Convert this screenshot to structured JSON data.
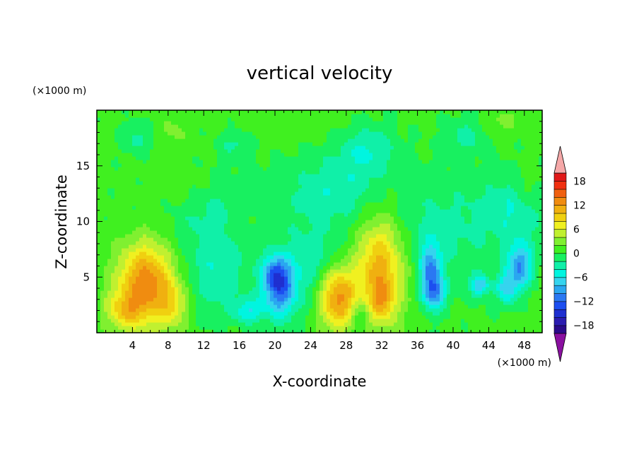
{
  "chart_data": {
    "type": "heatmap",
    "title": "vertical velocity",
    "xlabel": "X-coordinate",
    "ylabel": "Z-coordinate",
    "x_unit": "(×1000 m)",
    "y_unit": "(×1000 m)",
    "xlim": [
      0,
      50
    ],
    "ylim": [
      0,
      20
    ],
    "x_ticks": [
      4,
      8,
      12,
      16,
      20,
      24,
      28,
      32,
      36,
      40,
      44,
      48
    ],
    "y_ticks": [
      5,
      10,
      15
    ],
    "grid": false,
    "colorbar": {
      "levels": [
        -20,
        -18,
        -16,
        -14,
        -12,
        -10,
        -8,
        -6,
        -4,
        -2,
        0,
        2,
        4,
        6,
        8,
        10,
        12,
        14,
        16,
        18,
        20
      ],
      "tick_values": [
        18,
        12,
        6,
        0,
        -6,
        -12,
        -18
      ],
      "tick_labels": [
        "18",
        "12",
        "6",
        "0",
        "−6",
        "−12",
        "−18"
      ],
      "colors": [
        "#2a0a8a",
        "#2b1cb0",
        "#1f2fd0",
        "#1c4ef0",
        "#2a78f2",
        "#2aa7f0",
        "#35d4ee",
        "#00f5e0",
        "#10f0a8",
        "#18f060",
        "#40f020",
        "#80f030",
        "#c0f030",
        "#f0f020",
        "#f0d010",
        "#f0b010",
        "#f08c10",
        "#f06010",
        "#f03010",
        "#e01818"
      ],
      "over_color": "#f5a8a8",
      "under_color": "#8a10a0"
    },
    "features": [
      {
        "x": 5.5,
        "z": 4.5,
        "value": 13,
        "sx": 2.2,
        "sz": 2.6
      },
      {
        "x": 3.0,
        "z": 2.0,
        "value": 6,
        "sx": 1.5,
        "sz": 1.2
      },
      {
        "x": 8.5,
        "z": 2.5,
        "value": 5,
        "sx": 1.2,
        "sz": 1.5
      },
      {
        "x": 27.0,
        "z": 3.2,
        "value": 13,
        "sx": 1.5,
        "sz": 2.0
      },
      {
        "x": 31.8,
        "z": 5.5,
        "value": 11,
        "sx": 1.9,
        "sz": 3.4
      },
      {
        "x": 32.0,
        "z": 3.0,
        "value": 5,
        "sx": 0.8,
        "sz": 1.0
      },
      {
        "x": 29.5,
        "z": 1.5,
        "value": -4,
        "sx": 0.8,
        "sz": 1.2
      },
      {
        "x": 20.5,
        "z": 4.0,
        "value": -12,
        "sx": 1.3,
        "sz": 1.8
      },
      {
        "x": 20.0,
        "z": 5.5,
        "value": -6,
        "sx": 1.0,
        "sz": 1.0
      },
      {
        "x": 37.5,
        "z": 5.5,
        "value": -10,
        "sx": 0.8,
        "sz": 1.8
      },
      {
        "x": 38.0,
        "z": 3.5,
        "value": -7,
        "sx": 0.9,
        "sz": 1.0
      },
      {
        "x": 47.5,
        "z": 6.0,
        "value": -10,
        "sx": 1.0,
        "sz": 1.4
      },
      {
        "x": 46.0,
        "z": 4.0,
        "value": -7,
        "sx": 0.8,
        "sz": 1.0
      },
      {
        "x": 43.0,
        "z": 4.3,
        "value": -8,
        "sx": 0.7,
        "sz": 0.7
      },
      {
        "x": 17.0,
        "z": 2.0,
        "value": -6,
        "sx": 1.1,
        "sz": 0.8
      },
      {
        "x": 13.5,
        "z": 5.5,
        "value": -4,
        "sx": 2.5,
        "sz": 2.6
      },
      {
        "x": 24.5,
        "z": 6.0,
        "value": -4,
        "sx": 2.3,
        "sz": 2.6
      },
      {
        "x": 27.0,
        "z": 13.0,
        "value": -4,
        "sx": 3.5,
        "sz": 2.3
      },
      {
        "x": 39.0,
        "z": 9.5,
        "value": -3,
        "sx": 4.5,
        "sz": 3.5
      },
      {
        "x": 47.0,
        "z": 11.0,
        "value": -4,
        "sx": 2.5,
        "sz": 2.2
      },
      {
        "x": 14.0,
        "z": 11.0,
        "value": -3,
        "sx": 5.0,
        "sz": 2.5
      },
      {
        "x": 4.5,
        "z": 17.5,
        "value": -3,
        "sx": 1.2,
        "sz": 1.0
      },
      {
        "x": 15.5,
        "z": 17.0,
        "value": -3,
        "sx": 1.2,
        "sz": 0.8
      },
      {
        "x": 30.5,
        "z": 16.5,
        "value": -4,
        "sx": 2.2,
        "sz": 1.6
      },
      {
        "x": 41.5,
        "z": 17.8,
        "value": -3,
        "sx": 1.6,
        "sz": 1.2
      },
      {
        "x": 8.5,
        "z": 18.0,
        "value": 2,
        "sx": 1.2,
        "sz": 1.2
      },
      {
        "x": 9.5,
        "z": 13.0,
        "value": 2,
        "sx": 2.5,
        "sz": 1.5
      },
      {
        "x": 16.5,
        "z": 10.0,
        "value": 2,
        "sx": 1.4,
        "sz": 1.8
      },
      {
        "x": 22.0,
        "z": 18.5,
        "value": 1,
        "sx": 3.5,
        "sz": 1.0
      },
      {
        "x": 45.5,
        "z": 19.0,
        "value": 2,
        "sx": 1.6,
        "sz": 0.8
      },
      {
        "x": 48.5,
        "z": 13.0,
        "value": 2,
        "sx": 1.0,
        "sz": 1.5
      }
    ]
  }
}
